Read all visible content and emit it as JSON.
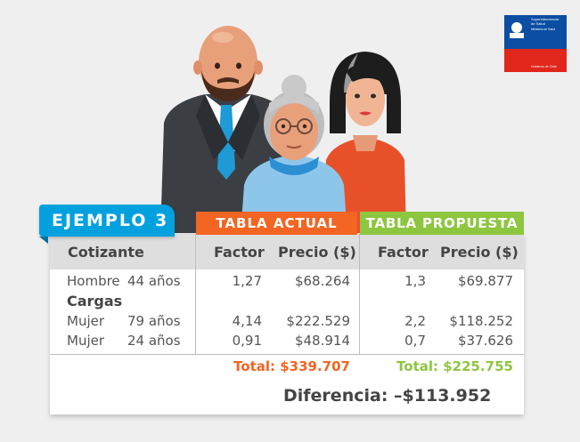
{
  "logo": {
    "line1": "Superintendencia",
    "line2": "de Salud",
    "line3": "Ministerio de Salud",
    "footer": "Gobierno de Chile",
    "colors": {
      "blue": "#0b4ea2",
      "red": "#e1261c"
    }
  },
  "illustration": {
    "icon": "family-icon"
  },
  "badge": "EJEMPLO 3",
  "tabs": {
    "actual": "TABLA ACTUAL",
    "propuesta": "TABLA PROPUESTA"
  },
  "headers": {
    "cotizante": "Cotizante",
    "factor": "Factor",
    "precio": "Precio ($)"
  },
  "cargas_label": "Cargas",
  "rows": [
    {
      "sex": "Hombre",
      "age": "44 años",
      "factor_actual": "1,27",
      "precio_actual": "$68.264",
      "factor_propuesta": "1,3",
      "precio_propuesta": "$69.877"
    },
    {
      "sex": "Mujer",
      "age": "79 años",
      "factor_actual": "4,14",
      "precio_actual": "$222.529",
      "factor_propuesta": "2,2",
      "precio_propuesta": "$118.252"
    },
    {
      "sex": "Mujer",
      "age": "24 años",
      "factor_actual": "0,91",
      "precio_actual": "$48.914",
      "factor_propuesta": "0,7",
      "precio_propuesta": "$37.626"
    }
  ],
  "totals": {
    "actual": "Total: $339.707",
    "propuesta": "Total: $225.755"
  },
  "diferencia": "Diferencia: –$113.952",
  "colors": {
    "orange": "#f26522",
    "green": "#8dc63f",
    "blue": "#00a1de"
  }
}
